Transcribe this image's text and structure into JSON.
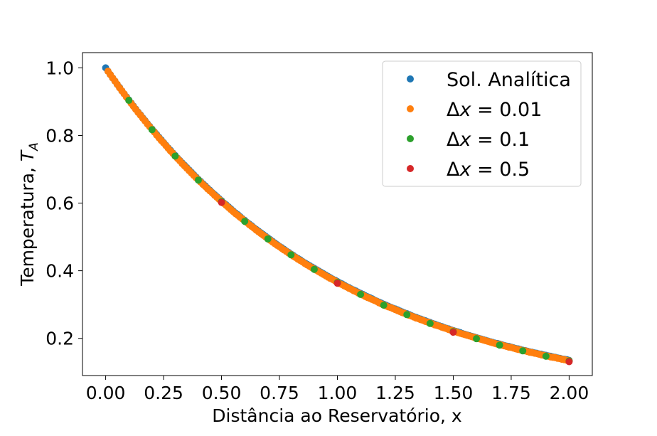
{
  "chart_data": {
    "type": "scatter",
    "title": "",
    "xlabel": "Distância ao Reservatório, x",
    "ylabel_main": "Temperatura, ",
    "ylabel_var": "T",
    "ylabel_sub": "A",
    "xlim": [
      -0.1,
      2.1
    ],
    "ylim": [
      0.09,
      1.045
    ],
    "x_ticks": [
      0.0,
      0.25,
      0.5,
      0.75,
      1.0,
      1.25,
      1.5,
      1.75,
      2.0
    ],
    "x_tick_labels": [
      "0.00",
      "0.25",
      "0.50",
      "0.75",
      "1.00",
      "1.25",
      "1.50",
      "1.75",
      "2.00"
    ],
    "y_ticks": [
      0.2,
      0.4,
      0.6,
      0.8,
      1.0
    ],
    "y_tick_labels": [
      "0.2",
      "0.4",
      "0.6",
      "0.8",
      "1.0"
    ],
    "grid": false,
    "legend_position": "top-right",
    "legend": [
      {
        "label_prefix": "Sol. Analítica",
        "label_var": "",
        "label_suffix": "",
        "color": "#1f77b4"
      },
      {
        "label_prefix": "Δ",
        "label_var": "x",
        "label_suffix": " = 0.01",
        "color": "#ff7f0e"
      },
      {
        "label_prefix": "Δ",
        "label_var": "x",
        "label_suffix": " = 0.1",
        "color": "#2ca02c"
      },
      {
        "label_prefix": "Δ",
        "label_var": "x",
        "label_suffix": " = 0.5",
        "color": "#d62728"
      }
    ],
    "series": [
      {
        "key": "analytic",
        "color": "#1f77b4",
        "x": [
          0.0,
          0.01,
          0.02,
          0.03,
          0.04,
          0.05,
          0.06,
          0.07,
          0.08,
          0.09,
          0.1,
          0.11,
          0.12,
          0.13,
          0.14,
          0.15,
          0.16,
          0.17,
          0.18,
          0.19,
          0.2,
          0.21,
          0.22,
          0.23,
          0.24,
          0.25,
          0.26,
          0.27,
          0.28,
          0.29,
          0.3,
          0.31,
          0.32,
          0.33,
          0.34,
          0.35,
          0.36,
          0.37,
          0.38,
          0.39,
          0.4,
          0.41,
          0.42,
          0.43,
          0.44,
          0.45,
          0.46,
          0.47,
          0.48,
          0.49,
          0.5,
          0.51,
          0.52,
          0.53,
          0.54,
          0.55,
          0.56,
          0.57,
          0.58,
          0.59,
          0.6,
          0.61,
          0.62,
          0.63,
          0.64,
          0.65,
          0.66,
          0.67,
          0.68,
          0.69,
          0.7,
          0.71,
          0.72,
          0.73,
          0.74,
          0.75,
          0.76,
          0.77,
          0.78,
          0.79,
          0.8,
          0.81,
          0.82,
          0.83,
          0.84,
          0.85,
          0.86,
          0.87,
          0.88,
          0.89,
          0.9,
          0.91,
          0.92,
          0.93,
          0.94,
          0.95,
          0.96,
          0.97,
          0.98,
          0.99,
          1.0,
          1.01,
          1.02,
          1.03,
          1.04,
          1.05,
          1.06,
          1.07,
          1.08,
          1.09,
          1.1,
          1.11,
          1.12,
          1.13,
          1.14,
          1.15,
          1.16,
          1.17,
          1.18,
          1.19,
          1.2,
          1.21,
          1.22,
          1.23,
          1.24,
          1.25,
          1.26,
          1.27,
          1.28,
          1.29,
          1.3,
          1.31,
          1.32,
          1.33,
          1.34,
          1.35,
          1.36,
          1.37,
          1.38,
          1.39,
          1.4,
          1.41,
          1.42,
          1.43,
          1.44,
          1.45,
          1.46,
          1.47,
          1.48,
          1.49,
          1.5,
          1.51,
          1.52,
          1.53,
          1.54,
          1.55,
          1.56,
          1.57,
          1.58,
          1.59,
          1.6,
          1.61,
          1.62,
          1.63,
          1.64,
          1.65,
          1.66,
          1.67,
          1.68,
          1.69,
          1.7,
          1.71,
          1.72,
          1.73,
          1.74,
          1.75,
          1.76,
          1.77,
          1.78,
          1.79,
          1.8,
          1.81,
          1.82,
          1.83,
          1.84,
          1.85,
          1.86,
          1.87,
          1.88,
          1.89,
          1.9,
          1.91,
          1.92,
          1.93,
          1.94,
          1.95,
          1.96,
          1.97,
          1.98,
          1.99,
          2.0
        ],
        "y": [
          1.0,
          0.99,
          0.98,
          0.97,
          0.961,
          0.951,
          0.942,
          0.932,
          0.923,
          0.914,
          0.905,
          0.896,
          0.887,
          0.878,
          0.869,
          0.861,
          0.852,
          0.844,
          0.835,
          0.827,
          0.819,
          0.811,
          0.803,
          0.795,
          0.787,
          0.779,
          0.771,
          0.763,
          0.756,
          0.748,
          0.741,
          0.733,
          0.726,
          0.719,
          0.712,
          0.705,
          0.698,
          0.691,
          0.684,
          0.677,
          0.67,
          0.664,
          0.657,
          0.651,
          0.644,
          0.638,
          0.631,
          0.625,
          0.619,
          0.613,
          0.607,
          0.6,
          0.595,
          0.589,
          0.583,
          0.577,
          0.571,
          0.566,
          0.56,
          0.554,
          0.549,
          0.543,
          0.538,
          0.533,
          0.527,
          0.522,
          0.517,
          0.512,
          0.507,
          0.502,
          0.497,
          0.492,
          0.487,
          0.482,
          0.477,
          0.472,
          0.468,
          0.463,
          0.458,
          0.454,
          0.449,
          0.445,
          0.44,
          0.436,
          0.432,
          0.427,
          0.423,
          0.419,
          0.415,
          0.411,
          0.407,
          0.403,
          0.399,
          0.395,
          0.391,
          0.387,
          0.383,
          0.379,
          0.375,
          0.372,
          0.368,
          0.364,
          0.361,
          0.357,
          0.353,
          0.35,
          0.346,
          0.343,
          0.34,
          0.336,
          0.333,
          0.33,
          0.326,
          0.323,
          0.32,
          0.317,
          0.313,
          0.31,
          0.307,
          0.304,
          0.301,
          0.298,
          0.295,
          0.292,
          0.289,
          0.287,
          0.284,
          0.281,
          0.278,
          0.275,
          0.273,
          0.27,
          0.267,
          0.264,
          0.262,
          0.259,
          0.257,
          0.254,
          0.252,
          0.249,
          0.247,
          0.244,
          0.242,
          0.239,
          0.237,
          0.235,
          0.232,
          0.23,
          0.228,
          0.225,
          0.223,
          0.221,
          0.219,
          0.217,
          0.214,
          0.212,
          0.21,
          0.208,
          0.206,
          0.204,
          0.202,
          0.2,
          0.198,
          0.196,
          0.194,
          0.192,
          0.19,
          0.188,
          0.186,
          0.185,
          0.183,
          0.181,
          0.179,
          0.177,
          0.176,
          0.174,
          0.172,
          0.17,
          0.169,
          0.167,
          0.165,
          0.164,
          0.162,
          0.16,
          0.159,
          0.157,
          0.156,
          0.154,
          0.153,
          0.151,
          0.15,
          0.148,
          0.147,
          0.145,
          0.144,
          0.142,
          0.141,
          0.139,
          0.138,
          0.137,
          0.135
        ]
      },
      {
        "key": "dx001",
        "color": "#ff7f0e",
        "x": [
          0.01,
          0.02,
          0.03,
          0.04,
          0.05,
          0.06,
          0.07,
          0.08,
          0.09,
          0.1,
          0.11,
          0.12,
          0.13,
          0.14,
          0.15,
          0.16,
          0.17,
          0.18,
          0.19,
          0.2,
          0.21,
          0.22,
          0.23,
          0.24,
          0.25,
          0.26,
          0.27,
          0.28,
          0.29,
          0.3,
          0.31,
          0.32,
          0.33,
          0.34,
          0.35,
          0.36,
          0.37,
          0.38,
          0.39,
          0.4,
          0.41,
          0.42,
          0.43,
          0.44,
          0.45,
          0.46,
          0.47,
          0.48,
          0.49,
          0.5,
          0.51,
          0.52,
          0.53,
          0.54,
          0.55,
          0.56,
          0.57,
          0.58,
          0.59,
          0.6,
          0.61,
          0.62,
          0.63,
          0.64,
          0.65,
          0.66,
          0.67,
          0.68,
          0.69,
          0.7,
          0.71,
          0.72,
          0.73,
          0.74,
          0.75,
          0.76,
          0.77,
          0.78,
          0.79,
          0.8,
          0.81,
          0.82,
          0.83,
          0.84,
          0.85,
          0.86,
          0.87,
          0.88,
          0.89,
          0.9,
          0.91,
          0.92,
          0.93,
          0.94,
          0.95,
          0.96,
          0.97,
          0.98,
          0.99,
          1.0,
          1.01,
          1.02,
          1.03,
          1.04,
          1.05,
          1.06,
          1.07,
          1.08,
          1.09,
          1.1,
          1.11,
          1.12,
          1.13,
          1.14,
          1.15,
          1.16,
          1.17,
          1.18,
          1.19,
          1.2,
          1.21,
          1.22,
          1.23,
          1.24,
          1.25,
          1.26,
          1.27,
          1.28,
          1.29,
          1.3,
          1.31,
          1.32,
          1.33,
          1.34,
          1.35,
          1.36,
          1.37,
          1.38,
          1.39,
          1.4,
          1.41,
          1.42,
          1.43,
          1.44,
          1.45,
          1.46,
          1.47,
          1.48,
          1.49,
          1.5,
          1.51,
          1.52,
          1.53,
          1.54,
          1.55,
          1.56,
          1.57,
          1.58,
          1.59,
          1.6,
          1.61,
          1.62,
          1.63,
          1.64,
          1.65,
          1.66,
          1.67,
          1.68,
          1.69,
          1.7,
          1.71,
          1.72,
          1.73,
          1.74,
          1.75,
          1.76,
          1.77,
          1.78,
          1.79,
          1.8,
          1.81,
          1.82,
          1.83,
          1.84,
          1.85,
          1.86,
          1.87,
          1.88,
          1.89,
          1.9,
          1.91,
          1.92,
          1.93,
          1.94,
          1.95,
          1.96,
          1.97,
          1.98,
          1.99,
          2.0
        ],
        "y": [
          0.99,
          0.98,
          0.97,
          0.961,
          0.951,
          0.941,
          0.932,
          0.923,
          0.913,
          0.904,
          0.895,
          0.886,
          0.877,
          0.868,
          0.86,
          0.851,
          0.843,
          0.834,
          0.826,
          0.818,
          0.81,
          0.801,
          0.793,
          0.785,
          0.778,
          0.77,
          0.762,
          0.754,
          0.747,
          0.739,
          0.732,
          0.725,
          0.717,
          0.71,
          0.703,
          0.696,
          0.689,
          0.682,
          0.675,
          0.669,
          0.662,
          0.655,
          0.649,
          0.642,
          0.636,
          0.63,
          0.623,
          0.617,
          0.611,
          0.605,
          0.599,
          0.593,
          0.587,
          0.581,
          0.575,
          0.569,
          0.564,
          0.558,
          0.553,
          0.547,
          0.542,
          0.536,
          0.531,
          0.526,
          0.52,
          0.515,
          0.51,
          0.505,
          0.5,
          0.495,
          0.49,
          0.485,
          0.48,
          0.475,
          0.471,
          0.466,
          0.461,
          0.457,
          0.452,
          0.448,
          0.443,
          0.439,
          0.434,
          0.43,
          0.426,
          0.421,
          0.417,
          0.413,
          0.409,
          0.405,
          0.401,
          0.397,
          0.393,
          0.389,
          0.385,
          0.381,
          0.377,
          0.374,
          0.37,
          0.366,
          0.362,
          0.359,
          0.355,
          0.352,
          0.348,
          0.345,
          0.341,
          0.338,
          0.334,
          0.331,
          0.328,
          0.324,
          0.321,
          0.318,
          0.315,
          0.312,
          0.309,
          0.305,
          0.302,
          0.299,
          0.296,
          0.293,
          0.291,
          0.288,
          0.285,
          0.282,
          0.279,
          0.276,
          0.274,
          0.271,
          0.268,
          0.266,
          0.263,
          0.26,
          0.258,
          0.255,
          0.253,
          0.25,
          0.248,
          0.245,
          0.243,
          0.24,
          0.238,
          0.236,
          0.233,
          0.231,
          0.229,
          0.226,
          0.224,
          0.222,
          0.22,
          0.217,
          0.215,
          0.213,
          0.211,
          0.209,
          0.207,
          0.205,
          0.203,
          0.201,
          0.199,
          0.197,
          0.195,
          0.193,
          0.191,
          0.189,
          0.187,
          0.185,
          0.183,
          0.182,
          0.18,
          0.178,
          0.176,
          0.174,
          0.173,
          0.171,
          0.169,
          0.167,
          0.166,
          0.164,
          0.163,
          0.161,
          0.159,
          0.158,
          0.156,
          0.155,
          0.153,
          0.151,
          0.15,
          0.148,
          0.147,
          0.145,
          0.144,
          0.143,
          0.141,
          0.14,
          0.138,
          0.137,
          0.135,
          0.134
        ]
      },
      {
        "key": "dx01",
        "color": "#2ca02c",
        "x": [
          0.1,
          0.2,
          0.3,
          0.4,
          0.5,
          0.6,
          0.7,
          0.8,
          0.9,
          1.0,
          1.1,
          1.2,
          1.3,
          1.4,
          1.5,
          1.6,
          1.7,
          1.8,
          1.9,
          2.0
        ],
        "y": [
          0.904,
          0.817,
          0.739,
          0.668,
          0.604,
          0.546,
          0.494,
          0.447,
          0.404,
          0.365,
          0.33,
          0.298,
          0.27,
          0.244,
          0.22,
          0.199,
          0.18,
          0.163,
          0.147,
          0.133
        ]
      },
      {
        "key": "dx05",
        "color": "#d62728",
        "x": [
          0.5,
          1.0,
          1.5,
          2.0
        ],
        "y": [
          0.602,
          0.363,
          0.218,
          0.131
        ]
      }
    ]
  }
}
